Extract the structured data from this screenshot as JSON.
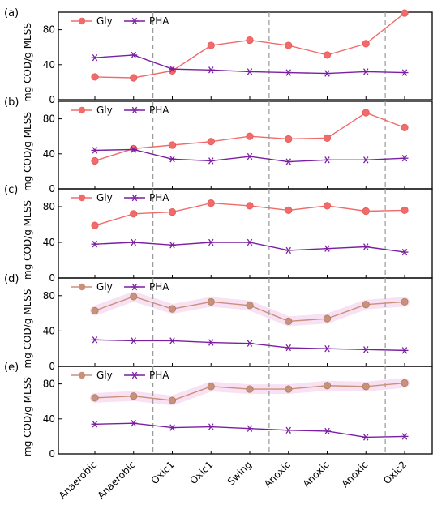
{
  "chart_data": {
    "type": "line",
    "categories": [
      "Anaerobic",
      "Anaerobic",
      "Oxic1",
      "Oxic1",
      "Swing",
      "Anoxic",
      "Anoxic",
      "Anoxic",
      "Oxic2"
    ],
    "ylabel": "mg COD/g MLSS",
    "ylim": [
      0,
      100
    ],
    "yticks": [
      0,
      40,
      80
    ],
    "phase_dividers_after_index": [
      1,
      4,
      7
    ],
    "grid": false,
    "legend_position": "top-left",
    "panels": [
      {
        "label": "(a)",
        "series": [
          {
            "name": "Gly",
            "color": "#f26b6b",
            "marker": "circle",
            "values": [
              26,
              25,
              33,
              62,
              68,
              62,
              51,
              64,
              99
            ]
          },
          {
            "name": "PHA",
            "color": "#7b1fa2",
            "marker": "asterisk",
            "values": [
              48,
              51,
              35,
              34,
              32,
              31,
              30,
              32,
              31
            ]
          }
        ]
      },
      {
        "label": "(b)",
        "series": [
          {
            "name": "Gly",
            "color": "#f26b6b",
            "marker": "circle",
            "values": [
              32,
              46,
              50,
              54,
              60,
              57,
              58,
              87,
              70
            ]
          },
          {
            "name": "PHA",
            "color": "#7b1fa2",
            "marker": "asterisk",
            "values": [
              44,
              45,
              34,
              32,
              37,
              31,
              33,
              33,
              35
            ]
          }
        ]
      },
      {
        "label": "(c)",
        "series": [
          {
            "name": "Gly",
            "color": "#f26b6b",
            "marker": "circle",
            "values": [
              59,
              72,
              74,
              84,
              81,
              76,
              81,
              75,
              76
            ]
          },
          {
            "name": "PHA",
            "color": "#7b1fa2",
            "marker": "asterisk",
            "values": [
              38,
              40,
              37,
              40,
              40,
              31,
              33,
              35,
              29
            ]
          }
        ]
      },
      {
        "label": "(d)",
        "series": [
          {
            "name": "Gly",
            "color": "#c8917a",
            "marker": "circle",
            "values": [
              63,
              79,
              65,
              73,
              69,
              51,
              54,
              70,
              73
            ]
          },
          {
            "name": "PHA",
            "color": "#7b1fa2",
            "marker": "asterisk",
            "values": [
              30,
              29,
              29,
              27,
              26,
              21,
              20,
              19,
              18
            ]
          }
        ]
      },
      {
        "label": "(e)",
        "series": [
          {
            "name": "Gly",
            "color": "#c8917a",
            "marker": "circle",
            "values": [
              64,
              66,
              61,
              77,
              74,
              74,
              78,
              77,
              81
            ]
          },
          {
            "name": "PHA",
            "color": "#7b1fa2",
            "marker": "asterisk",
            "values": [
              34,
              35,
              30,
              31,
              29,
              27,
              26,
              19,
              20
            ]
          }
        ]
      }
    ]
  }
}
